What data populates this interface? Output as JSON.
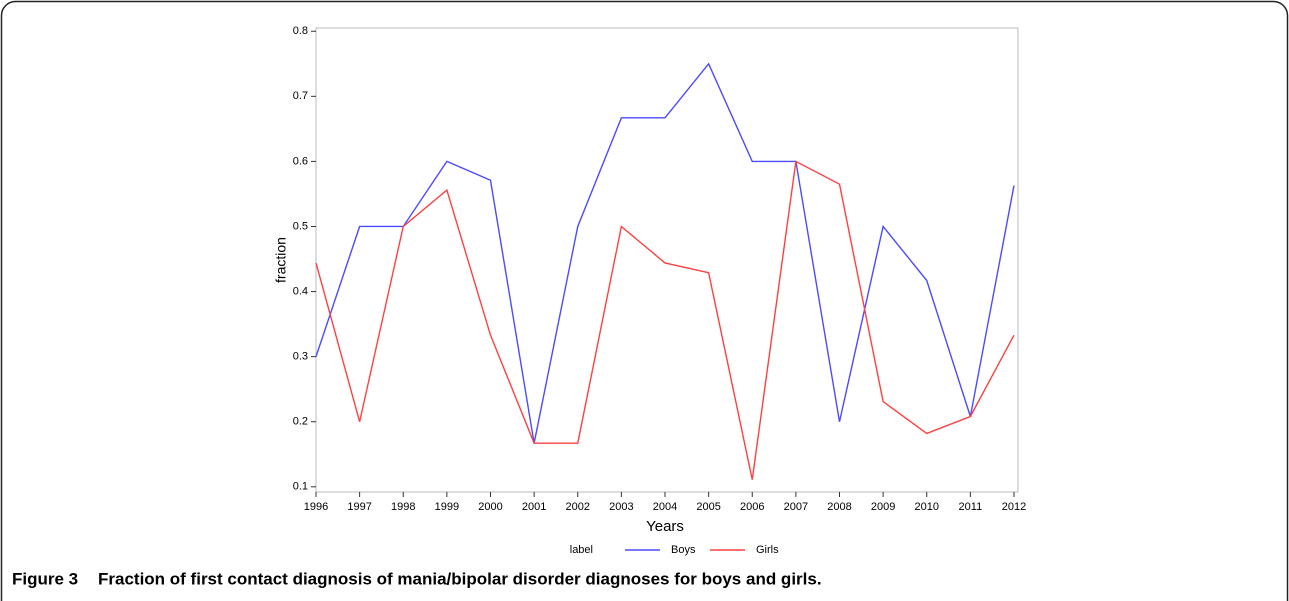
{
  "chart_data": {
    "type": "line",
    "xlabel": "Years",
    "ylabel": "fraction",
    "categories": [
      "1996",
      "1997",
      "1998",
      "1999",
      "2000",
      "2001",
      "2002",
      "2003",
      "2004",
      "2005",
      "2006",
      "2007",
      "2008",
      "2009",
      "2010",
      "2011",
      "2012"
    ],
    "series": [
      {
        "name": "Boys",
        "color": "#4b4bff",
        "values": [
          0.3,
          0.5,
          0.5,
          0.6,
          0.571,
          0.167,
          0.5,
          0.667,
          0.667,
          0.75,
          0.6,
          0.6,
          0.2,
          0.5,
          0.417,
          0.208,
          0.563
        ]
      },
      {
        "name": "Girls",
        "color": "#ff4040",
        "values": [
          0.444,
          0.2,
          0.5,
          0.556,
          0.333,
          0.167,
          0.167,
          0.5,
          0.444,
          0.429,
          0.111,
          0.6,
          0.565,
          0.231,
          0.182,
          0.208,
          0.333
        ]
      }
    ],
    "legend_title": "label",
    "ylim": [
      0.092,
      0.805
    ],
    "yticks": [
      0.1,
      0.2,
      0.3,
      0.4,
      0.5,
      0.6,
      0.7,
      0.8
    ]
  },
  "caption": {
    "label": "Figure 3",
    "text": "Fraction of first contact diagnosis of mania/bipolar disorder diagnoses for boys and girls."
  }
}
